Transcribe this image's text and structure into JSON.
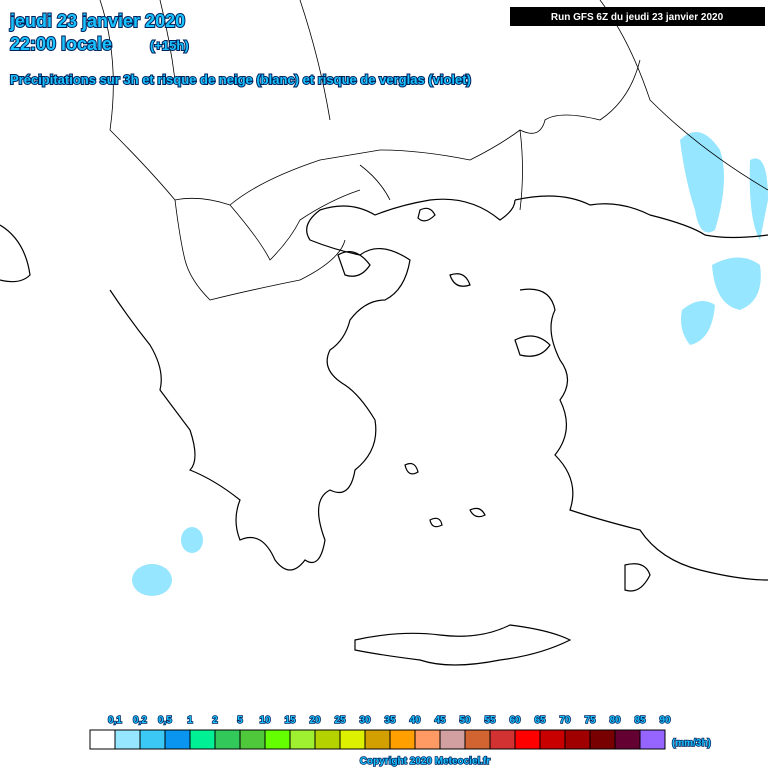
{
  "header": {
    "date": "jeudi 23 janvier 2020",
    "time": "22:00 locale",
    "lead": "(+15h)",
    "subtitle": "Précipitations sur 3h et risque de neige (blanc) et risque de verglas (violet)",
    "run": "Run GFS 6Z du jeudi 23 janvier 2020"
  },
  "legend": {
    "unit": "(mm/3h)",
    "items": [
      {
        "label": "0,1",
        "color": "#ffffff"
      },
      {
        "label": "0,2",
        "color": "#96e6ff"
      },
      {
        "label": "0,5",
        "color": "#3cc8f5"
      },
      {
        "label": "1",
        "color": "#0a96f0"
      },
      {
        "label": "2",
        "color": "#00f096"
      },
      {
        "label": "5",
        "color": "#32c85a"
      },
      {
        "label": "10",
        "color": "#50c83c"
      },
      {
        "label": "15",
        "color": "#64ff00"
      },
      {
        "label": "20",
        "color": "#a0f032"
      },
      {
        "label": "25",
        "color": "#b4d200"
      },
      {
        "label": "30",
        "color": "#dcf000"
      },
      {
        "label": "35",
        "color": "#d2a000"
      },
      {
        "label": "40",
        "color": "#ffa000"
      },
      {
        "label": "45",
        "color": "#ff9a64"
      },
      {
        "label": "50",
        "color": "#d2a0a0"
      },
      {
        "label": "55",
        "color": "#d26432"
      },
      {
        "label": "60",
        "color": "#d23232"
      },
      {
        "label": "65",
        "color": "#ff0000"
      },
      {
        "label": "70",
        "color": "#c80000"
      },
      {
        "label": "75",
        "color": "#a00000"
      },
      {
        "label": "80",
        "color": "#780000"
      },
      {
        "label": "85",
        "color": "#640032"
      },
      {
        "label": "90",
        "color": "#9664ff"
      }
    ]
  },
  "footer": {
    "copyright": "Copyright 2020 Meteociel.fr"
  }
}
